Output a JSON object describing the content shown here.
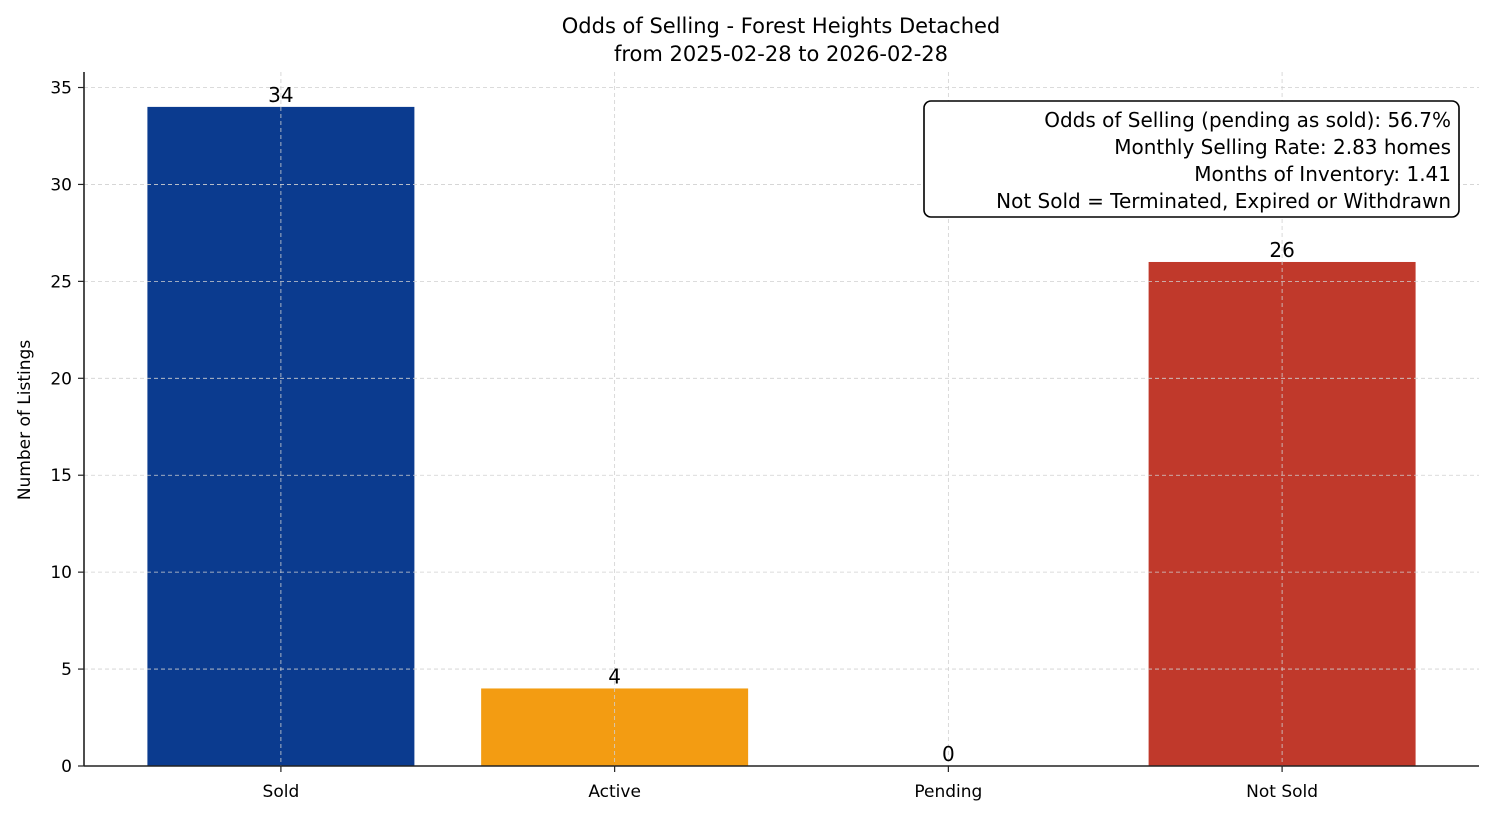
{
  "chart_data": {
    "type": "bar",
    "title": "Odds of Selling - Forest Heights Detached",
    "subtitle": "from 2025-02-28 to 2026-02-28",
    "xlabel": "",
    "ylabel": "Number of Listings",
    "categories": [
      "Sold",
      "Active",
      "Pending",
      "Not Sold"
    ],
    "values": [
      34,
      4,
      0,
      26
    ],
    "colors": [
      "#0b3b8f",
      "#f39c12",
      "#c0392b",
      "#c0392b"
    ],
    "ylim": [
      0,
      35.8
    ],
    "yticks": [
      0,
      5,
      10,
      15,
      20,
      25,
      30,
      35
    ],
    "grid": true,
    "data_labels": true,
    "annotation": {
      "placement": "top-right",
      "lines": [
        "Odds of Selling (pending as sold): 56.7%",
        "Monthly Selling Rate: 2.83 homes",
        "Months of Inventory: 1.41",
        "Not Sold = Terminated, Expired or Withdrawn"
      ]
    }
  }
}
